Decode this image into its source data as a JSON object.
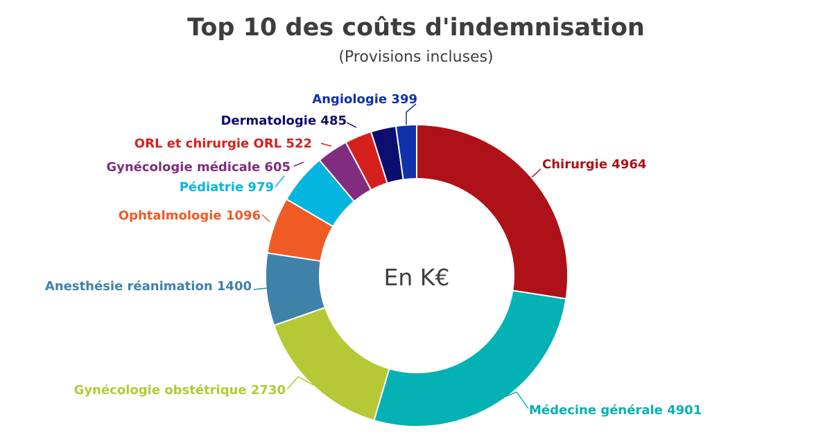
{
  "chart_data": {
    "type": "pie",
    "subtype": "donut",
    "title": "Top 10 des coûts d'indemnisation",
    "subtitle": "(Provisions incluses)",
    "center_label": "En K€",
    "legend": "none",
    "slices": [
      {
        "label": "Chirurgie",
        "value": 4964,
        "color": "#ae1118"
      },
      {
        "label": "Médecine générale",
        "value": 4901,
        "color": "#04b1b4"
      },
      {
        "label": "Gynécologie obstétrique",
        "value": 2730,
        "color": "#b4c935"
      },
      {
        "label": "Anesthésie réanimation",
        "value": 1400,
        "color": "#3e82a9"
      },
      {
        "label": "Ophtalmologie",
        "value": 1096,
        "color": "#f05a24"
      },
      {
        "label": "Pédiatrie",
        "value": 979,
        "color": "#04b6df"
      },
      {
        "label": "Gynécologie médicale",
        "value": 605,
        "color": "#812d7f"
      },
      {
        "label": "ORL et chirurgie ORL",
        "value": 522,
        "color": "#d5201e"
      },
      {
        "label": "Dermatologie",
        "value": 485,
        "color": "#0c0f6e"
      },
      {
        "label": "Angiologie",
        "value": 399,
        "color": "#0f32ab"
      }
    ]
  }
}
